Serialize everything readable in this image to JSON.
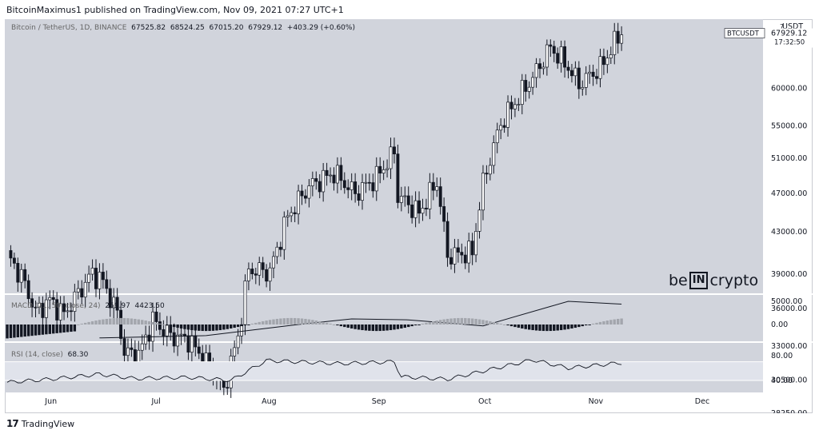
{
  "caption": "BitcoinMaximus1 published on TradingView.com, Nov 09, 2021 07:27 UTC+1",
  "footer": {
    "logo": "17",
    "text": "TradingView"
  },
  "brand": {
    "left": "be",
    "box": "IN",
    "right": "crypto"
  },
  "main_legend": {
    "symbol": "Bitcoin / TetherUS, 1D, BINANCE",
    "open": "67525.82",
    "high": "68524.25",
    "low": "67015.20",
    "close": "67929.12",
    "change": "+403.29 (+0.60%)"
  },
  "price_tag": {
    "ticker": "BTCUSDT",
    "price": "67929.12",
    "countdown": "17:32:50",
    "corner_label": "USDT"
  },
  "macd_legend": {
    "name": "MACD (21, 50, close, 24)",
    "v1": "269.97",
    "v2": "4423.50"
  },
  "rsi_legend": {
    "name": "RSI (14, close)",
    "v1": "68.30"
  },
  "colors": {
    "pane_bg": "#d1d4dc",
    "candle": "#131722",
    "macd_line": "#131722",
    "macd_hist": "#a3a6ad",
    "rsi_band": "#e0e3eb"
  },
  "chart_data": [
    {
      "type": "candlestick",
      "title": "Bitcoin / TetherUS, 1D, BINANCE",
      "x_ticks": [
        "Jun",
        "Jul",
        "Aug",
        "Sep",
        "Oct",
        "Nov",
        "Dec"
      ],
      "y_ticks": [
        "60000.00",
        "55000.00",
        "51000.00",
        "47000.00",
        "43000.00",
        "39000.00",
        "36000.00",
        "33000.00",
        "30500.00",
        "28250.00"
      ],
      "y_scale": "log",
      "approx_close_path": [
        {
          "date": "2021-05-20",
          "close": 40700
        },
        {
          "date": "2021-05-24",
          "close": 38800
        },
        {
          "date": "2021-05-28",
          "close": 35700
        },
        {
          "date": "2021-06-01",
          "close": 36700
        },
        {
          "date": "2021-06-05",
          "close": 35500
        },
        {
          "date": "2021-06-09",
          "close": 37300
        },
        {
          "date": "2021-06-13",
          "close": 39100
        },
        {
          "date": "2021-06-16",
          "close": 38300
        },
        {
          "date": "2021-06-20",
          "close": 35600
        },
        {
          "date": "2021-06-22",
          "close": 32500
        },
        {
          "date": "2021-06-26",
          "close": 32300
        },
        {
          "date": "2021-06-30",
          "close": 35000
        },
        {
          "date": "2021-07-05",
          "close": 33800
        },
        {
          "date": "2021-07-10",
          "close": 33500
        },
        {
          "date": "2021-07-15",
          "close": 31800
        },
        {
          "date": "2021-07-20",
          "close": 29800
        },
        {
          "date": "2021-07-24",
          "close": 33700
        },
        {
          "date": "2021-07-27",
          "close": 39400
        },
        {
          "date": "2021-08-02",
          "close": 39200
        },
        {
          "date": "2021-08-07",
          "close": 44600
        },
        {
          "date": "2021-08-13",
          "close": 47800
        },
        {
          "date": "2021-08-20",
          "close": 49300
        },
        {
          "date": "2021-08-26",
          "close": 47000
        },
        {
          "date": "2021-09-01",
          "close": 48800
        },
        {
          "date": "2021-09-06",
          "close": 51700
        },
        {
          "date": "2021-09-07",
          "close": 46800
        },
        {
          "date": "2021-09-13",
          "close": 44900
        },
        {
          "date": "2021-09-18",
          "close": 48300
        },
        {
          "date": "2021-09-21",
          "close": 40700
        },
        {
          "date": "2021-09-28",
          "close": 41000
        },
        {
          "date": "2021-10-01",
          "close": 48100
        },
        {
          "date": "2021-10-06",
          "close": 55300
        },
        {
          "date": "2021-10-15",
          "close": 61500
        },
        {
          "date": "2021-10-20",
          "close": 66000
        },
        {
          "date": "2021-10-25",
          "close": 63000
        },
        {
          "date": "2021-10-28",
          "close": 60600
        },
        {
          "date": "2021-11-03",
          "close": 62900
        },
        {
          "date": "2021-11-08",
          "close": 67500
        },
        {
          "date": "2021-11-09",
          "close": 67929
        }
      ]
    },
    {
      "type": "bar+line",
      "title": "MACD (21, 50, close, 24)",
      "y_ticks": [
        "5000.00",
        "0.00"
      ],
      "approx_line": [
        {
          "date": "2021-06-15",
          "value": -2900
        },
        {
          "date": "2021-07-15",
          "value": -2400
        },
        {
          "date": "2021-08-10",
          "value": 0
        },
        {
          "date": "2021-08-25",
          "value": 1200
        },
        {
          "date": "2021-09-10",
          "value": 1000
        },
        {
          "date": "2021-09-20",
          "value": 400
        },
        {
          "date": "2021-10-01",
          "value": -300
        },
        {
          "date": "2021-10-20",
          "value": 3900
        },
        {
          "date": "2021-10-25",
          "value": 5000
        },
        {
          "date": "2021-11-09",
          "value": 4400
        }
      ]
    },
    {
      "type": "line",
      "title": "RSI (14, close)",
      "y_ticks": [
        "80.00",
        "40.00"
      ],
      "band": [
        40,
        70
      ],
      "approx_values": [
        {
          "date": "2021-05-20",
          "value": 37
        },
        {
          "date": "2021-06-01",
          "value": 42
        },
        {
          "date": "2021-06-15",
          "value": 50
        },
        {
          "date": "2021-06-25",
          "value": 43
        },
        {
          "date": "2021-07-10",
          "value": 45
        },
        {
          "date": "2021-07-22",
          "value": 40
        },
        {
          "date": "2021-08-01",
          "value": 72
        },
        {
          "date": "2021-08-22",
          "value": 67
        },
        {
          "date": "2021-09-06",
          "value": 70
        },
        {
          "date": "2021-09-08",
          "value": 46
        },
        {
          "date": "2021-09-21",
          "value": 42
        },
        {
          "date": "2021-10-01",
          "value": 55
        },
        {
          "date": "2021-10-15",
          "value": 73
        },
        {
          "date": "2021-10-25",
          "value": 60
        },
        {
          "date": "2021-11-09",
          "value": 68.3
        }
      ]
    }
  ]
}
